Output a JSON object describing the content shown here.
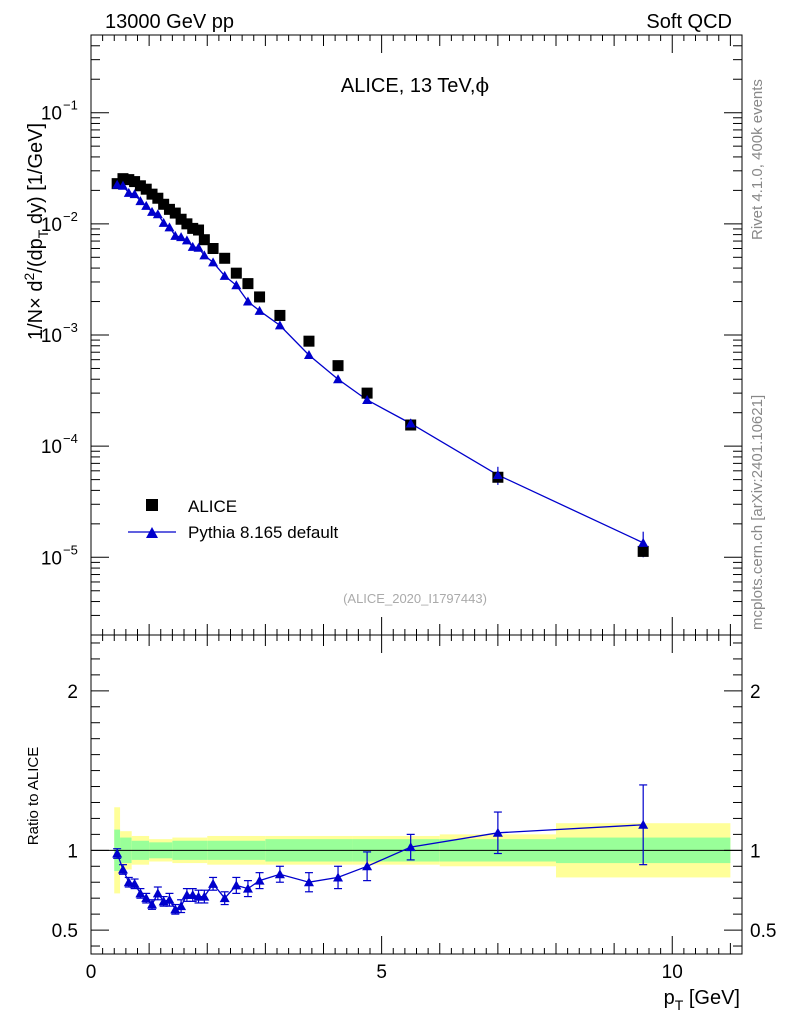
{
  "header": {
    "left": "13000 GeV pp",
    "right": "Soft QCD"
  },
  "chart_data": [
    {
      "type": "scatter",
      "panel": "main",
      "title": "ALICE, 13 TeV,",
      "title_symbol": "ϕ",
      "yscale": "log",
      "ylim": [
        2e-06,
        0.5
      ],
      "xlim": [
        0,
        11.2
      ],
      "ylabel": {
        "a": "1/N",
        "times": "×",
        "b": " d",
        "sup": "2",
        "c": "/(dp",
        "sub": "T",
        "d": " dy) [1/GeV]"
      },
      "y_ticks": [
        {
          "value": 1e-05,
          "base": "10",
          "exp": "−5"
        },
        {
          "value": 0.0001,
          "base": "10",
          "exp": "−4"
        },
        {
          "value": 0.001,
          "base": "10",
          "exp": "−3"
        },
        {
          "value": 0.01,
          "base": "10",
          "exp": "−2"
        },
        {
          "value": 0.1,
          "base": "10",
          "exp": "−1"
        }
      ],
      "legend": {
        "placement": "lower-left",
        "entries": [
          {
            "label": "ALICE",
            "marker": "square",
            "color": "#000000"
          },
          {
            "label": "Pythia 8.165 default",
            "marker": "triangle",
            "color": "#0000cc"
          }
        ]
      },
      "annotation": "(ALICE_2020_I1797443)",
      "x": [
        0.45,
        0.55,
        0.65,
        0.75,
        0.85,
        0.95,
        1.05,
        1.15,
        1.25,
        1.35,
        1.45,
        1.55,
        1.65,
        1.75,
        1.85,
        1.95,
        2.1,
        2.3,
        2.5,
        2.7,
        2.9,
        3.25,
        3.75,
        4.25,
        4.75,
        5.5,
        7.0,
        9.5
      ],
      "series": [
        {
          "name": "ALICE",
          "color": "#000000",
          "values": [
            0.023,
            0.0255,
            0.025,
            0.024,
            0.022,
            0.0205,
            0.0185,
            0.017,
            0.015,
            0.0135,
            0.0125,
            0.011,
            0.01,
            0.0091,
            0.0088,
            0.0072,
            0.006,
            0.0049,
            0.0036,
            0.0029,
            0.0022,
            0.0015,
            0.00088,
            0.00053,
            0.0003,
            0.000155,
            5.25e-05,
            1.13e-05
          ]
        },
        {
          "name": "Pythia 8.165 default",
          "color": "#0000cc",
          "values": [
            0.0225,
            0.022,
            0.019,
            0.0185,
            0.016,
            0.0145,
            0.0128,
            0.0122,
            0.0102,
            0.0093,
            0.0078,
            0.0076,
            0.0071,
            0.0062,
            0.0061,
            0.0052,
            0.0045,
            0.0034,
            0.0028,
            0.002,
            0.00165,
            0.00122,
            0.00066,
            0.0004,
            0.00026,
            0.00016,
            5.5e-05,
            1.35e-05
          ],
          "errors": [
            0.0009,
            0.0008,
            0.0007,
            0.0007,
            0.0006,
            0.0005,
            0.0005,
            0.0004,
            0.0004,
            0.0003,
            0.0003,
            0.0003,
            0.0003,
            0.0002,
            0.0002,
            0.0002,
            0.00015,
            0.00012,
            0.0001,
            8e-05,
            6e-05,
            4e-05,
            2e-05,
            1.4e-05,
            2e-05,
            1.6e-05,
            1.02e-05,
            3.5e-06
          ]
        }
      ]
    },
    {
      "type": "scatter",
      "panel": "ratio",
      "ylabel": "Ratio to ALICE",
      "ylim": [
        0.35,
        2.35
      ],
      "xlim": [
        0,
        11.2
      ],
      "xlabel": "p",
      "xlabel_sub": "T",
      "xlabel_unit": " [GeV]",
      "x_ticks": [
        {
          "value": 0,
          "label": "0"
        },
        {
          "value": 5,
          "label": "5"
        },
        {
          "value": 10,
          "label": "10"
        }
      ],
      "y_ticks": [
        {
          "value": 0.5,
          "label": "0.5"
        },
        {
          "value": 1,
          "label": "1"
        },
        {
          "value": 2,
          "label": "2"
        }
      ],
      "reference_line": 1,
      "bands": [
        {
          "x0": 0.4,
          "x1": 0.5,
          "inner": 0.13,
          "outer": 0.27
        },
        {
          "x0": 0.5,
          "x1": 0.7,
          "inner": 0.08,
          "outer": 0.12
        },
        {
          "x0": 0.7,
          "x1": 1.0,
          "inner": 0.06,
          "outer": 0.09
        },
        {
          "x0": 1.0,
          "x1": 1.4,
          "inner": 0.05,
          "outer": 0.07
        },
        {
          "x0": 1.4,
          "x1": 2.0,
          "inner": 0.06,
          "outer": 0.08
        },
        {
          "x0": 2.0,
          "x1": 3.0,
          "inner": 0.06,
          "outer": 0.09
        },
        {
          "x0": 3.0,
          "x1": 4.5,
          "inner": 0.07,
          "outer": 0.09
        },
        {
          "x0": 4.5,
          "x1": 6.0,
          "inner": 0.07,
          "outer": 0.09
        },
        {
          "x0": 6.0,
          "x1": 8.0,
          "inner": 0.07,
          "outer": 0.1
        },
        {
          "x0": 8.0,
          "x1": 11.0,
          "inner": 0.08,
          "outer": 0.17
        }
      ],
      "band_colors": {
        "inner": "#99ff99",
        "outer": "#ffff99"
      },
      "x": [
        0.45,
        0.55,
        0.65,
        0.75,
        0.85,
        0.95,
        1.05,
        1.15,
        1.25,
        1.35,
        1.45,
        1.55,
        1.65,
        1.75,
        1.85,
        1.95,
        2.1,
        2.3,
        2.5,
        2.7,
        2.9,
        3.25,
        3.75,
        4.25,
        4.75,
        5.5,
        7.0,
        9.5
      ],
      "series": [
        {
          "name": "Pythia 8.165 default",
          "color": "#0000cc",
          "values": [
            0.98,
            0.88,
            0.8,
            0.79,
            0.73,
            0.7,
            0.66,
            0.73,
            0.68,
            0.69,
            0.63,
            0.65,
            0.72,
            0.72,
            0.71,
            0.71,
            0.79,
            0.7,
            0.78,
            0.76,
            0.81,
            0.85,
            0.8,
            0.83,
            0.9,
            1.02,
            1.11,
            1.16
          ],
          "errors": [
            0.03,
            0.03,
            0.03,
            0.03,
            0.03,
            0.03,
            0.03,
            0.04,
            0.03,
            0.04,
            0.03,
            0.04,
            0.04,
            0.04,
            0.04,
            0.04,
            0.04,
            0.04,
            0.05,
            0.05,
            0.05,
            0.05,
            0.06,
            0.07,
            0.09,
            0.08,
            0.13,
            0.25
          ]
        }
      ]
    }
  ],
  "side_labels": {
    "rivet": "Rivet 4.1.0,  400k events",
    "site": "mcplots.cern.ch [arXiv:2401.10621]"
  }
}
